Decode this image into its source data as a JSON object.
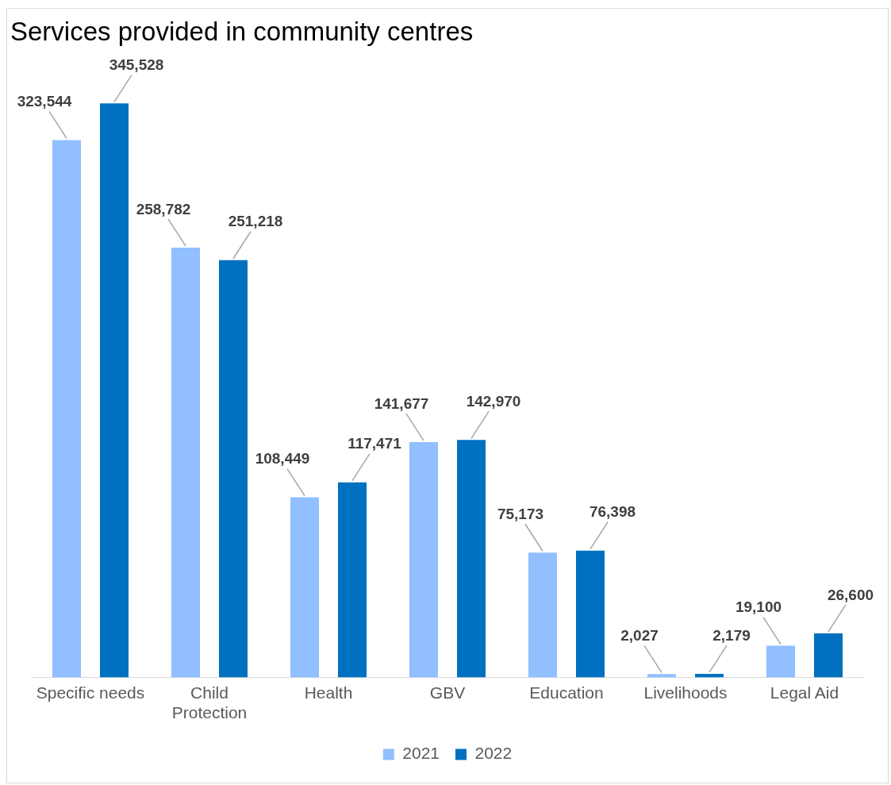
{
  "chart_data": {
    "type": "bar",
    "title": "Services provided in community centres",
    "categories": [
      "Specific needs",
      "Child Protection",
      "Health",
      "GBV",
      "Education",
      "Livelihoods",
      "Legal Aid"
    ],
    "series": [
      {
        "name": "2021",
        "color": "#91bfff",
        "values": [
          323544,
          258782,
          108449,
          141677,
          75173,
          2027,
          19100
        ],
        "value_labels": [
          "323,544",
          "258,782",
          "108,449",
          "141,677",
          "75,173",
          "2,027",
          "19,100"
        ]
      },
      {
        "name": "2022",
        "color": "#0070c0",
        "values": [
          345528,
          251218,
          117471,
          142970,
          76398,
          2179,
          26600
        ],
        "value_labels": [
          "345,528",
          "251,218",
          "117,471",
          "142,970",
          "76,398",
          "2,179",
          "26,600"
        ]
      }
    ],
    "legend": "bottom",
    "grid": false
  }
}
